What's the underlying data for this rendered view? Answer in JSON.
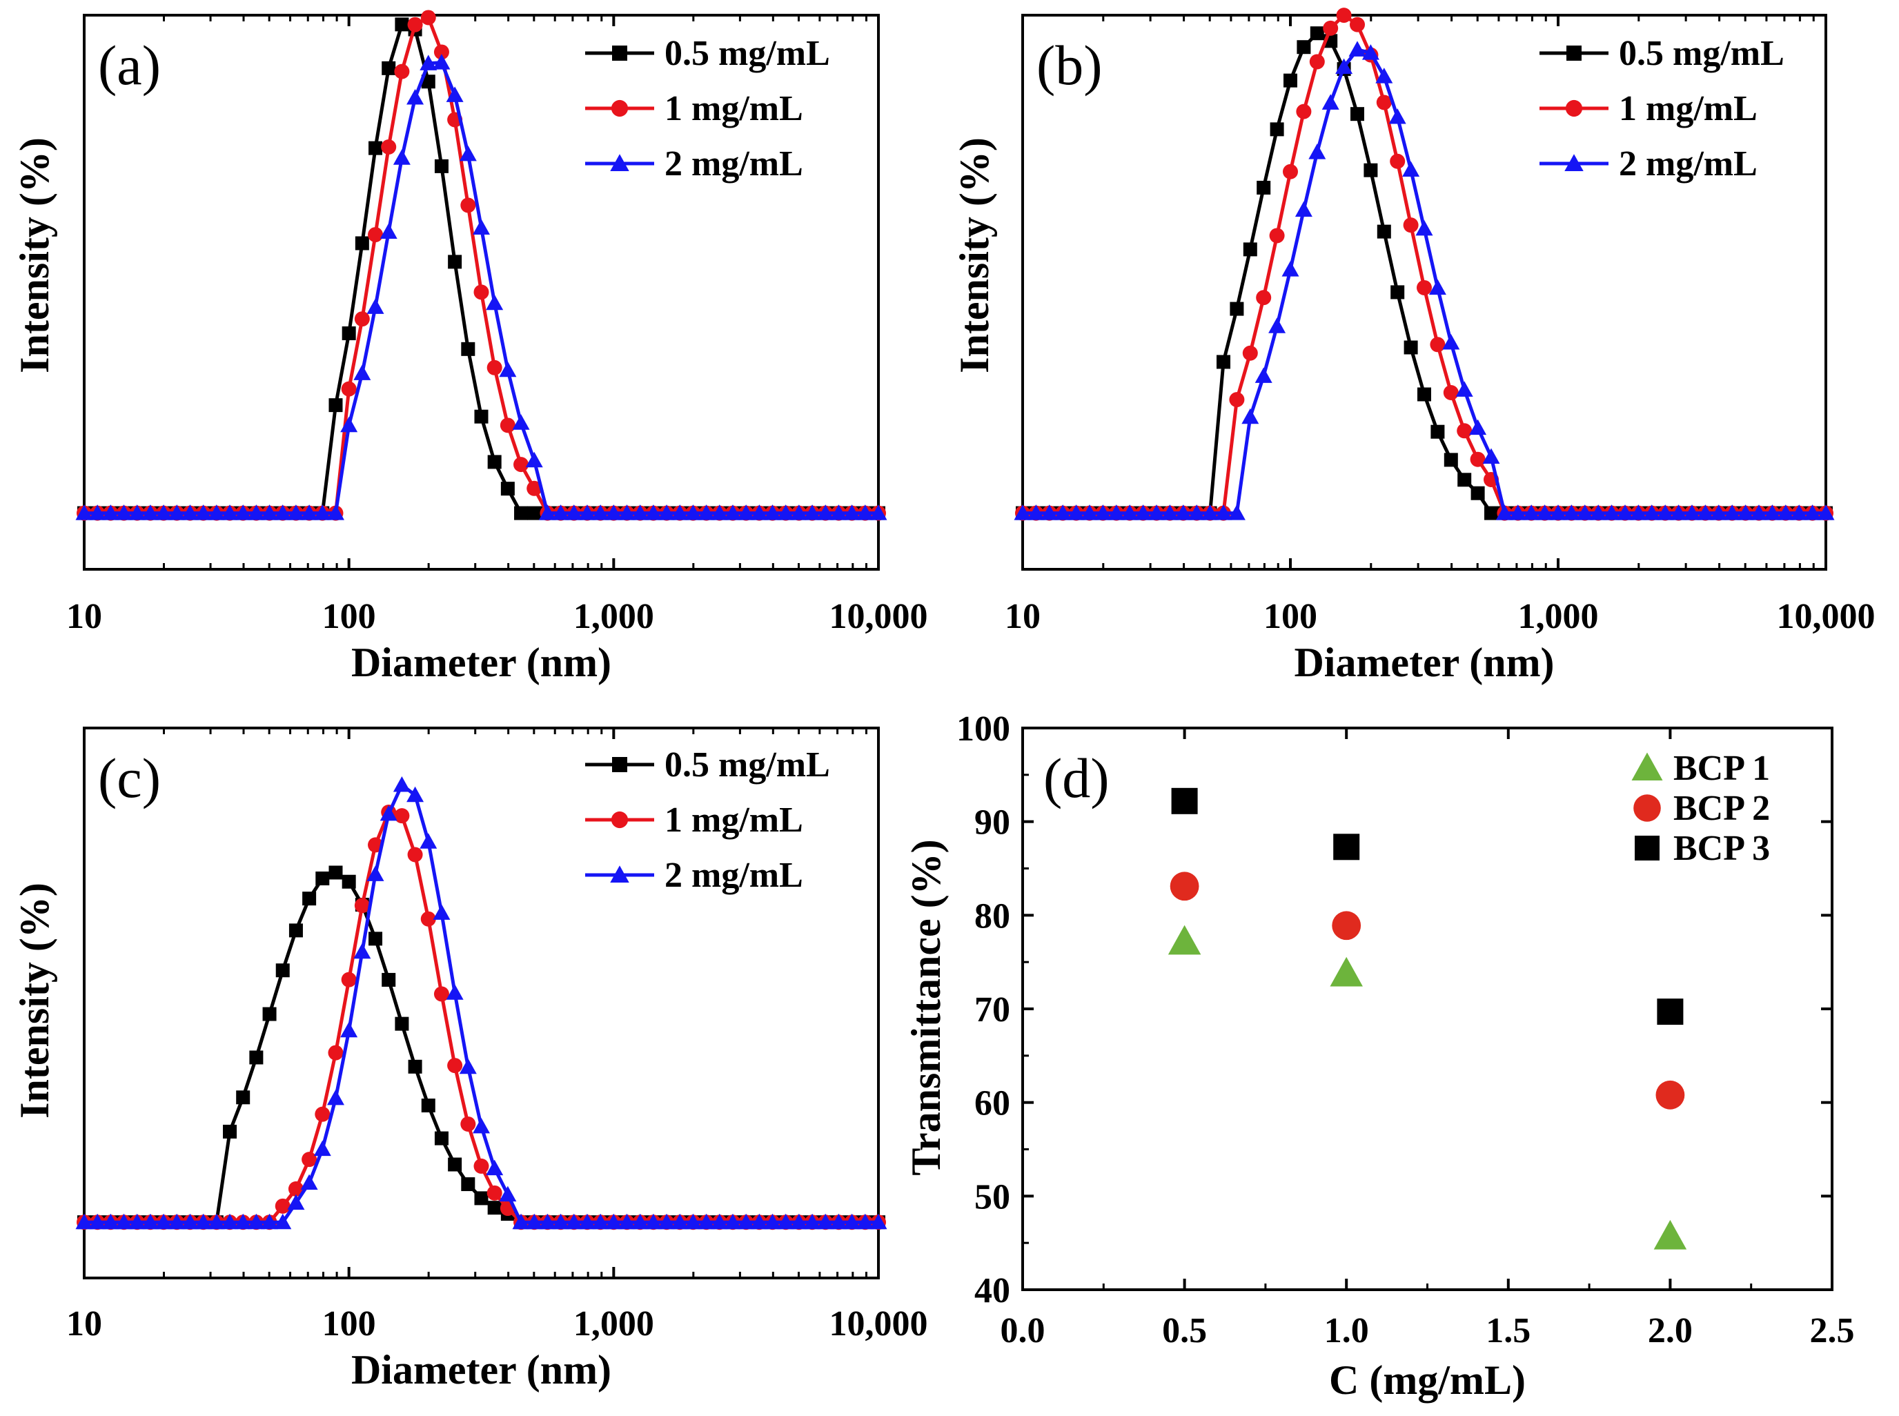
{
  "colors": {
    "black": "#000000",
    "red": "#e8141c",
    "blue": "#1515f5",
    "green": "#6db43c",
    "scatter_red": "#e02a1e"
  },
  "chart_data": [
    {
      "type": "line",
      "panel_label": "(a)",
      "xscale": "log",
      "xlabel": "Diameter (nm)",
      "ylabel": "Intensity (%)",
      "xlim": [
        10,
        10000
      ],
      "ylim": [
        -2.2,
        19.5
      ],
      "xtick_labels": [
        "10",
        "100",
        "1,000",
        "10,000"
      ],
      "legend_position": "top-right",
      "series": [
        {
          "name": "0.5 mg/mL",
          "color_key": "black",
          "marker": "square",
          "mu": 166,
          "sigma": 0.155,
          "peak": 19.3,
          "xmin_cut": 80,
          "xmax_cut": 420
        },
        {
          "name": "1 mg/mL",
          "color_key": "red",
          "marker": "circle",
          "mu": 192,
          "sigma": 0.17,
          "peak": 19.5,
          "xmin_cut": 95,
          "xmax_cut": 560
        },
        {
          "name": "2 mg/mL",
          "color_key": "blue",
          "marker": "triangle",
          "mu": 212,
          "sigma": 0.18,
          "peak": 17.8,
          "xmin_cut": 96,
          "xmax_cut": 560
        }
      ]
    },
    {
      "type": "line",
      "panel_label": "(b)",
      "xscale": "log",
      "xlabel": "Diameter (nm)",
      "ylabel": "Intensity (%)",
      "xlim": [
        10,
        10000
      ],
      "ylim": [
        -2.2,
        19.5
      ],
      "xtick_labels": [
        "10",
        "100",
        "1,000",
        "10,000"
      ],
      "legend_position": "top-right",
      "series": [
        {
          "name": "0.5 mg/mL",
          "color_key": "black",
          "marker": "square",
          "mu": 128,
          "sigma": 0.235,
          "peak": 18.8,
          "xmin_cut": 52,
          "xmax_cut": 540
        },
        {
          "name": "1 mg/mL",
          "color_key": "red",
          "marker": "circle",
          "mu": 160,
          "sigma": 0.235,
          "peak": 19.5,
          "xmin_cut": 62,
          "xmax_cut": 620
        },
        {
          "name": "2 mg/mL",
          "color_key": "blue",
          "marker": "triangle",
          "mu": 185,
          "sigma": 0.235,
          "peak": 18.2,
          "xmin_cut": 70,
          "xmax_cut": 620
        }
      ]
    },
    {
      "type": "line",
      "panel_label": "(c)",
      "xscale": "log",
      "xlabel": "Diameter (nm)",
      "ylabel": "Intensity (%)",
      "xlim": [
        10,
        10000
      ],
      "ylim": [
        -2.2,
        19.5
      ],
      "xtick_labels": [
        "10",
        "100",
        "1,000",
        "10,000"
      ],
      "legend_position": "top-right",
      "series": [
        {
          "name": "0.5 mg/mL",
          "color_key": "black",
          "marker": "square",
          "mu": 88,
          "sigma": 0.24,
          "peak": 13.8,
          "xmin_cut": 34,
          "xmax_cut": 420
        },
        {
          "name": "1 mg/mL",
          "color_key": "red",
          "marker": "circle",
          "mu": 148,
          "sigma": 0.165,
          "peak": 16.3,
          "xmin_cut": 54,
          "xmax_cut": 430
        },
        {
          "name": "2 mg/mL",
          "color_key": "blue",
          "marker": "triangle",
          "mu": 163,
          "sigma": 0.165,
          "peak": 17.3,
          "xmin_cut": 60,
          "xmax_cut": 430
        }
      ]
    },
    {
      "type": "scatter",
      "panel_label": "(d)",
      "xlabel": "C (mg/mL)",
      "ylabel": "Transmittance (%)",
      "xlim": [
        0.0,
        2.5
      ],
      "ylim": [
        40,
        100
      ],
      "xtick_labels": [
        "0.0",
        "0.5",
        "1.0",
        "1.5",
        "2.0",
        "2.5"
      ],
      "ytick_labels": [
        "40",
        "50",
        "60",
        "70",
        "80",
        "90",
        "100"
      ],
      "legend_position": "top-right",
      "x": [
        0.5,
        1.0,
        2.0
      ],
      "series": [
        {
          "name": "BCP 1",
          "color_key": "green",
          "marker": "triangle",
          "values": [
            77.2,
            73.8,
            45.7
          ]
        },
        {
          "name": "BCP 2",
          "color_key": "scatter_red",
          "marker": "circle",
          "values": [
            83.1,
            78.9,
            60.8
          ]
        },
        {
          "name": "BCP 3",
          "color_key": "black",
          "marker": "square",
          "values": [
            92.2,
            87.3,
            69.7
          ]
        }
      ]
    }
  ]
}
